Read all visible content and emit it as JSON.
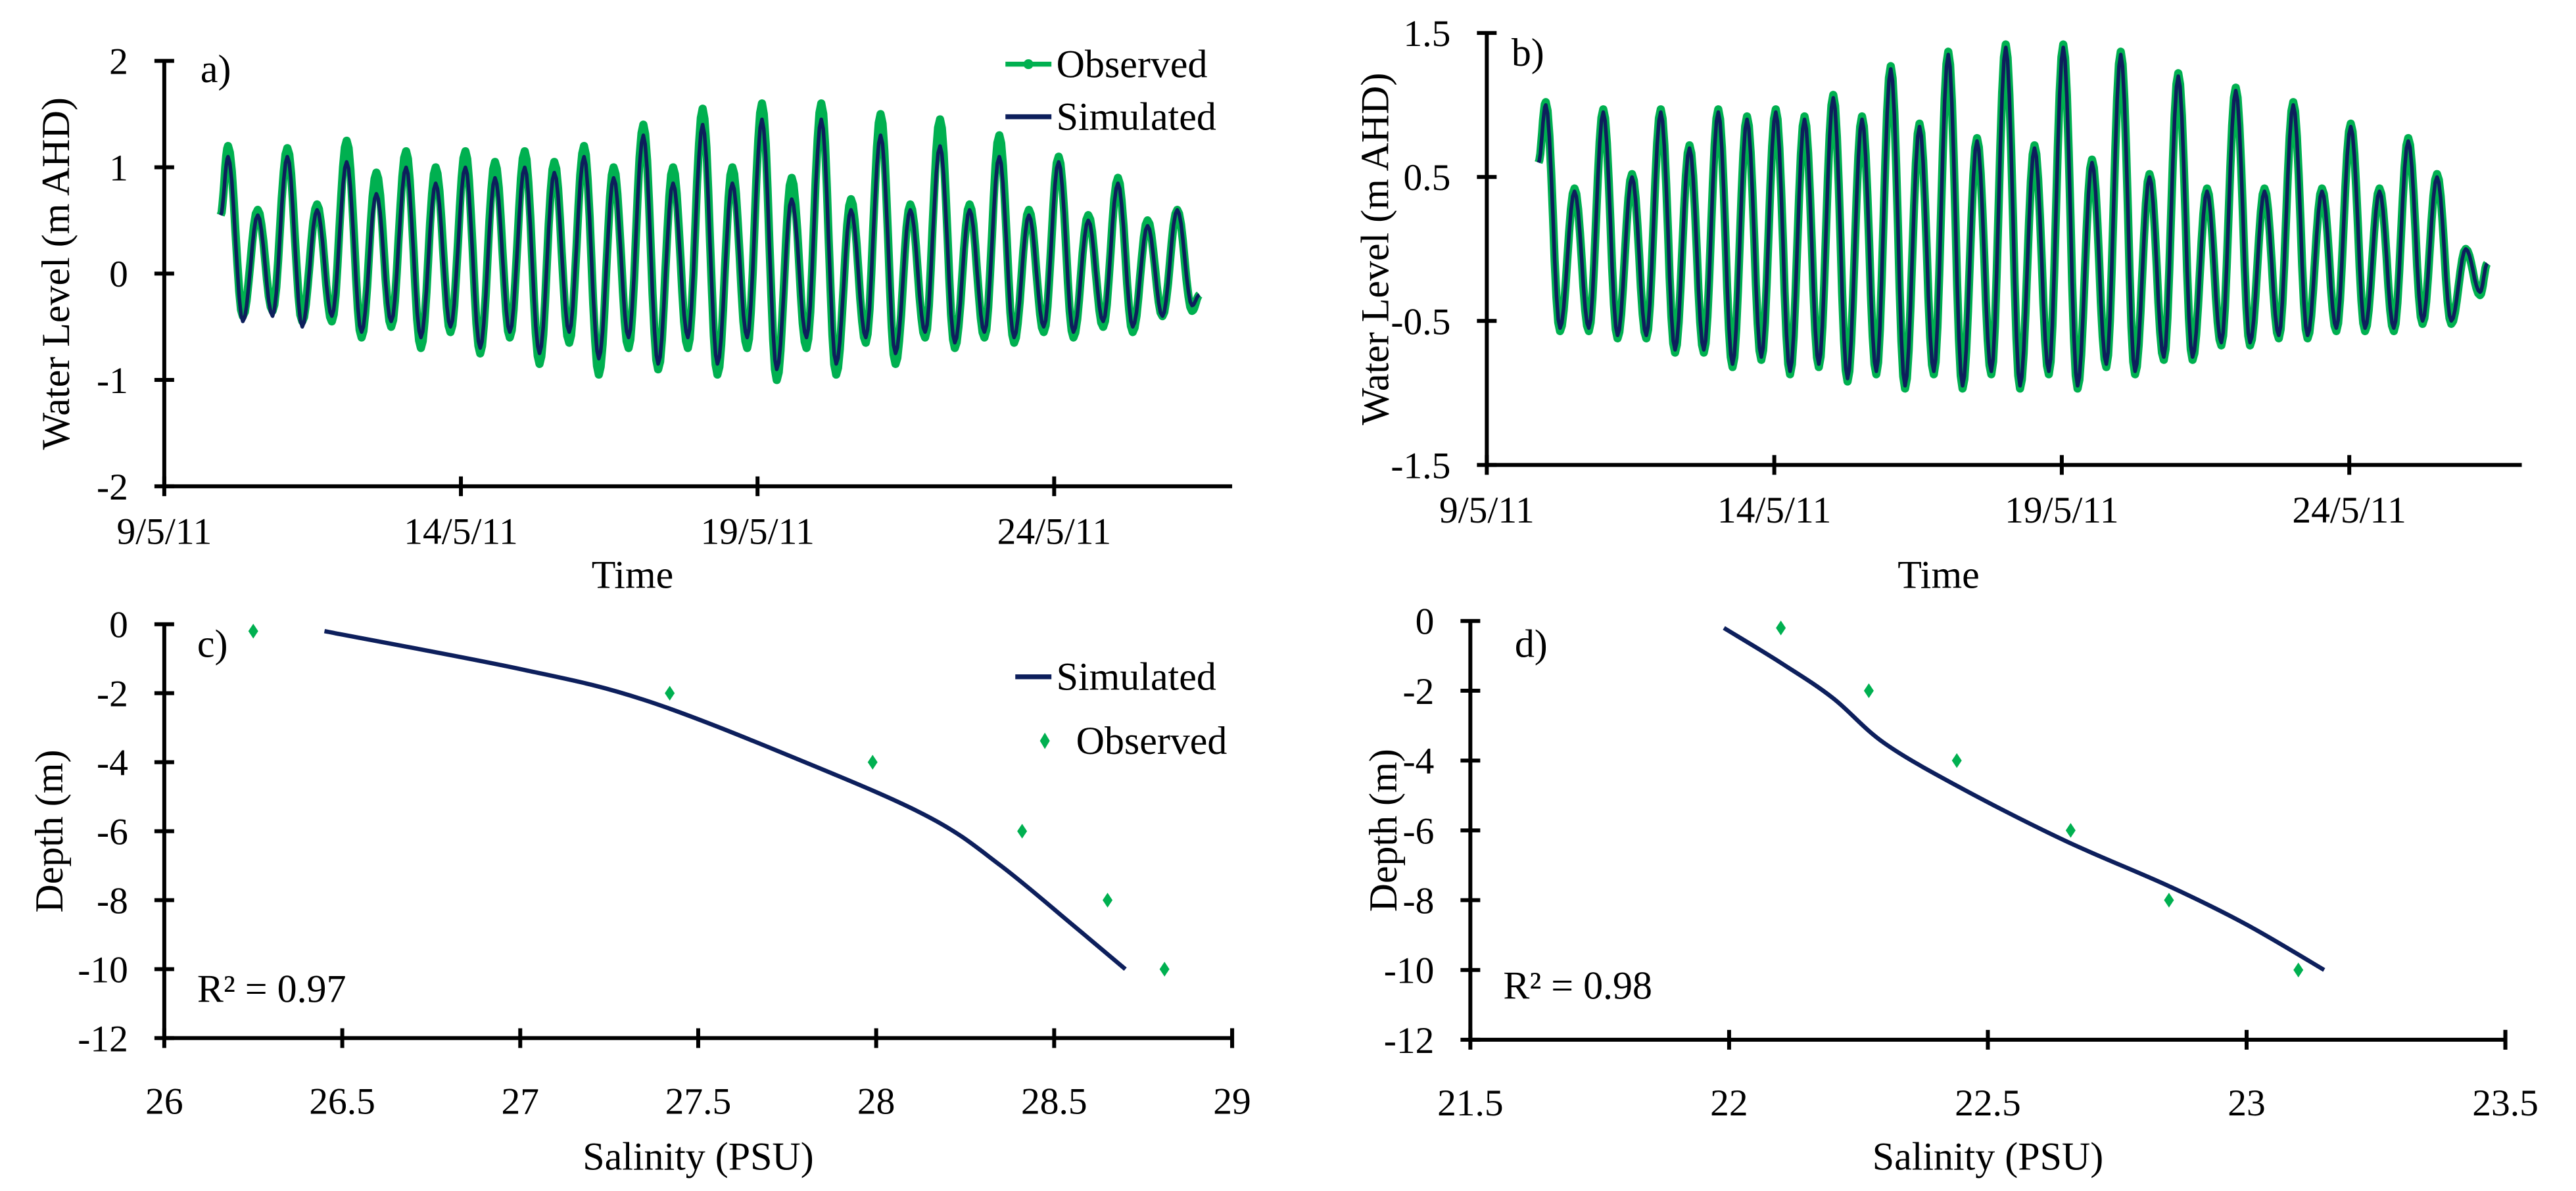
{
  "colors": {
    "observed": "#00b050",
    "simulated": "#0d1f5c",
    "axis": "#000000"
  },
  "chart_data": [
    {
      "panel": "a)",
      "type": "line",
      "xlabel": "Time",
      "ylabel": "Water Level (m AHD)",
      "ylim": [
        -2,
        2
      ],
      "yticks": [
        2,
        1,
        0,
        -1,
        -2
      ],
      "xlim_day_of_may_2011": [
        9,
        27
      ],
      "xticks": [
        {
          "day": 9,
          "label": "9/5/11"
        },
        {
          "day": 14,
          "label": "14/5/11"
        },
        {
          "day": 19,
          "label": "19/5/11"
        },
        {
          "day": 24,
          "label": "24/5/11"
        }
      ],
      "legend": {
        "position": "top-right",
        "entries": [
          "Observed",
          "Simulated"
        ]
      },
      "series_time": {
        "start_day": 9.95,
        "half_cycle_days": 0.25,
        "start_value": 0.55,
        "end_value": -0.2
      },
      "series": [
        {
          "name": "Simulated",
          "highs": [
            1.1,
            0.55,
            1.1,
            0.6,
            1.05,
            0.75,
            1.0,
            0.85,
            1.0,
            0.9,
            1.0,
            0.95,
            1.1,
            0.9,
            1.3,
            0.85,
            1.4,
            0.85,
            1.45,
            0.7,
            1.45,
            0.6,
            1.3,
            0.6,
            1.2,
            0.6,
            1.1,
            0.55,
            1.05,
            0.5,
            0.85,
            0.45,
            0.6
          ],
          "lows": [
            -0.45,
            -0.4,
            -0.5,
            -0.4,
            -0.55,
            -0.45,
            -0.6,
            -0.5,
            -0.7,
            -0.55,
            -0.75,
            -0.55,
            -0.8,
            -0.6,
            -0.85,
            -0.6,
            -0.85,
            -0.6,
            -0.9,
            -0.6,
            -0.85,
            -0.6,
            -0.75,
            -0.55,
            -0.65,
            -0.55,
            -0.6,
            -0.5,
            -0.55,
            -0.45,
            -0.5,
            -0.4,
            -0.3
          ]
        },
        {
          "name": "Observed",
          "highs": [
            1.2,
            0.6,
            1.18,
            0.65,
            1.25,
            0.95,
            1.15,
            1.0,
            1.15,
            1.05,
            1.15,
            1.05,
            1.2,
            1.0,
            1.4,
            1.0,
            1.55,
            1.0,
            1.6,
            0.9,
            1.6,
            0.7,
            1.5,
            0.65,
            1.45,
            0.65,
            1.3,
            0.6,
            1.1,
            0.55,
            0.9,
            0.5,
            0.6
          ],
          "lows": [
            -0.4,
            -0.35,
            -0.45,
            -0.45,
            -0.6,
            -0.5,
            -0.7,
            -0.55,
            -0.75,
            -0.6,
            -0.85,
            -0.65,
            -0.95,
            -0.7,
            -0.9,
            -0.7,
            -0.95,
            -0.7,
            -1.0,
            -0.7,
            -0.95,
            -0.65,
            -0.85,
            -0.6,
            -0.7,
            -0.6,
            -0.65,
            -0.55,
            -0.6,
            -0.5,
            -0.55,
            -0.4,
            -0.35
          ]
        }
      ]
    },
    {
      "panel": "b)",
      "type": "line",
      "xlabel": "Time",
      "ylabel": "Water Level (m AHD)",
      "ylim": [
        -1.5,
        1.5
      ],
      "yticks": [
        1.5,
        0.5,
        -0.5,
        -1.5
      ],
      "xlim_day_of_may_2011": [
        9,
        27
      ],
      "xticks": [
        {
          "day": 9,
          "label": "9/5/11"
        },
        {
          "day": 14,
          "label": "14/5/11"
        },
        {
          "day": 19,
          "label": "19/5/11"
        },
        {
          "day": 24,
          "label": "24/5/11"
        }
      ],
      "series_time": {
        "start_day": 9.9,
        "half_cycle_days": 0.25,
        "start_value": 0.6,
        "end_value": -0.1
      },
      "series": [
        {
          "name": "Simulated",
          "highs": [
            1.0,
            0.4,
            0.95,
            0.5,
            0.95,
            0.7,
            0.95,
            0.9,
            0.95,
            0.9,
            1.05,
            0.9,
            1.25,
            0.85,
            1.35,
            0.75,
            1.4,
            0.7,
            1.4,
            0.6,
            1.35,
            0.5,
            1.2,
            0.4,
            1.1,
            0.4,
            1.0,
            0.4,
            0.85,
            0.4,
            0.75,
            0.5,
            0.0
          ],
          "lows": [
            -0.55,
            -0.55,
            -0.6,
            -0.6,
            -0.7,
            -0.7,
            -0.8,
            -0.75,
            -0.85,
            -0.8,
            -0.9,
            -0.85,
            -0.95,
            -0.85,
            -0.95,
            -0.85,
            -0.95,
            -0.85,
            -0.95,
            -0.8,
            -0.85,
            -0.75,
            -0.75,
            -0.65,
            -0.65,
            -0.6,
            -0.6,
            -0.55,
            -0.55,
            -0.55,
            -0.5,
            -0.5,
            -0.3
          ]
        },
        {
          "name": "Observed",
          "highs": [
            1.02,
            0.42,
            0.97,
            0.52,
            0.97,
            0.72,
            0.97,
            0.92,
            0.97,
            0.92,
            1.07,
            0.92,
            1.27,
            0.87,
            1.37,
            0.77,
            1.42,
            0.72,
            1.42,
            0.62,
            1.37,
            0.52,
            1.22,
            0.42,
            1.12,
            0.42,
            1.02,
            0.42,
            0.87,
            0.42,
            0.77,
            0.52,
            0.0
          ],
          "lows": [
            -0.57,
            -0.57,
            -0.62,
            -0.62,
            -0.72,
            -0.72,
            -0.82,
            -0.77,
            -0.87,
            -0.82,
            -0.92,
            -0.87,
            -0.97,
            -0.87,
            -0.97,
            -0.87,
            -0.97,
            -0.87,
            -0.97,
            -0.82,
            -0.87,
            -0.77,
            -0.77,
            -0.67,
            -0.67,
            -0.62,
            -0.62,
            -0.57,
            -0.57,
            -0.57,
            -0.52,
            -0.52,
            -0.32
          ]
        }
      ]
    },
    {
      "panel": "c)",
      "type": "scatter",
      "xlabel": "Salinity (PSU)",
      "ylabel": "Depth (m)",
      "xlim": [
        26,
        29
      ],
      "ylim": [
        -12,
        0
      ],
      "xticks": [
        26,
        26.5,
        27,
        27.5,
        28,
        28.5,
        29
      ],
      "yticks": [
        0,
        -2,
        -4,
        -6,
        -8,
        -10,
        -12
      ],
      "annotation": "R² = 0.97",
      "legend": {
        "position": "top-right",
        "entries": [
          "Simulated",
          "Observed"
        ]
      },
      "series": [
        {
          "name": "Simulated",
          "x": [
            26.45,
            27.0,
            27.35,
            27.8,
            28.15,
            28.35,
            28.55,
            28.7
          ],
          "y": [
            -0.2,
            -1.3,
            -2.2,
            -4,
            -5.6,
            -7,
            -8.7,
            -10
          ]
        },
        {
          "name": "Observed",
          "x": [
            26.25,
            27.42,
            27.99,
            28.41,
            28.65,
            28.81
          ],
          "y": [
            -0.2,
            -2,
            -4,
            -6,
            -8,
            -10
          ]
        }
      ]
    },
    {
      "panel": "d)",
      "type": "scatter",
      "xlabel": "Salinity (PSU)",
      "ylabel": "Depth (m)",
      "xlim": [
        21.5,
        23.5
      ],
      "ylim": [
        -12,
        0
      ],
      "xticks": [
        21.5,
        22,
        22.5,
        23,
        23.5
      ],
      "yticks": [
        0,
        -2,
        -4,
        -6,
        -8,
        -10,
        -12
      ],
      "annotation": "R² = 0.98",
      "series": [
        {
          "name": "Simulated",
          "x": [
            21.99,
            22.1,
            22.2,
            22.3,
            22.45,
            22.65,
            22.85,
            23.0,
            23.15
          ],
          "y": [
            -0.2,
            -1.2,
            -2.2,
            -3.5,
            -4.8,
            -6.3,
            -7.6,
            -8.7,
            -10
          ]
        },
        {
          "name": "Observed",
          "x": [
            22.1,
            22.27,
            22.44,
            22.66,
            22.85,
            23.1
          ],
          "y": [
            -0.2,
            -2,
            -4,
            -6,
            -8,
            -10
          ]
        }
      ]
    }
  ]
}
